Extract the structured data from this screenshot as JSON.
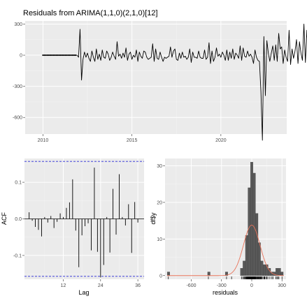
{
  "chart_data": [
    {
      "type": "line",
      "title": "Residuals from ARIMA(1,1,0)(2,1,0)[12]",
      "xlabel": "",
      "ylabel": "",
      "xlim": [
        2009.0,
        2023.7
      ],
      "ylim": [
        -760,
        330
      ],
      "x_ticks": [
        2010,
        2015,
        2020
      ],
      "y_ticks": [
        300,
        0,
        -300,
        -600
      ],
      "x_tick_labels": [
        "2010",
        "2015",
        "2020"
      ],
      "y_tick_labels": [
        "300",
        "0",
        "-300",
        "-600"
      ],
      "grid": true,
      "points_marked_until": 2011.9,
      "series": [
        {
          "x_start": 2010.0,
          "x_step": 0.0833333333,
          "values": [
            0,
            0,
            0,
            0,
            0,
            0,
            0,
            0,
            0,
            0,
            0,
            0,
            0,
            0,
            0,
            0,
            0,
            0,
            0,
            0,
            0,
            0,
            0,
            0,
            -20,
            250,
            -240,
            -40,
            30,
            -20,
            20,
            -30,
            -60,
            40,
            -20,
            -60,
            60,
            -40,
            10,
            -50,
            50,
            -20,
            -30,
            40,
            10,
            -50,
            -20,
            30,
            -10,
            -40,
            130,
            -10,
            10,
            -30,
            20,
            -20,
            70,
            -50,
            10,
            30,
            -40,
            0,
            -20,
            50,
            -60,
            30,
            -10,
            -30,
            40,
            30,
            -20,
            -40,
            -30,
            -20,
            110,
            -60,
            60,
            -30,
            -40,
            30,
            -20,
            -60,
            -20,
            -30,
            -20,
            -10,
            80,
            -20,
            40,
            60,
            -40,
            -50,
            20,
            -30,
            30,
            -20,
            -10,
            -40,
            -20,
            60,
            -70,
            30,
            -20,
            -20,
            -30,
            40,
            -20,
            -30,
            -30,
            50,
            -40,
            -20,
            120,
            -80,
            40,
            -60,
            -20,
            70,
            -10,
            10,
            -20,
            30,
            0,
            -50,
            50,
            -50,
            30,
            -30,
            60,
            -40,
            20,
            0,
            -30,
            90,
            -50,
            70,
            -10,
            -20,
            40,
            -10,
            10,
            -20,
            -80,
            50,
            -20,
            -50,
            -60,
            -350,
            -820,
            180,
            -390,
            140,
            20,
            -60,
            20,
            90,
            -50,
            100,
            -60,
            210,
            60,
            80,
            -80,
            50,
            -20,
            -60,
            240,
            -90,
            60,
            -30,
            40,
            150,
            -80,
            130,
            20,
            -50,
            300,
            -70,
            240,
            -30,
            -80,
            150,
            -80,
            -40,
            -50,
            -100,
            0
          ]
        }
      ]
    },
    {
      "type": "bar",
      "title": "",
      "xlabel": "Lag",
      "ylabel": "ACF",
      "x_ticks": [
        12,
        24,
        36
      ],
      "x_tick_labels": [
        "12",
        "24",
        "36"
      ],
      "y_ticks": [
        0.1,
        0.0,
        -0.1
      ],
      "y_tick_labels": [
        "0.1",
        "0.0",
        "-0.1"
      ],
      "xlim": [
        -0.5,
        38
      ],
      "ylim": [
        -0.165,
        0.165
      ],
      "confidence_bounds": [
        0.157,
        -0.157
      ],
      "grid": true,
      "lags": [
        1,
        2,
        3,
        4,
        5,
        6,
        7,
        8,
        9,
        10,
        11,
        12,
        13,
        14,
        15,
        16,
        17,
        18,
        19,
        20,
        21,
        22,
        23,
        24,
        25,
        26,
        27,
        28,
        29,
        30,
        31,
        32,
        33,
        34,
        35,
        36
      ],
      "values": [
        0.018,
        -0.005,
        -0.022,
        -0.03,
        -0.048,
        0.005,
        -0.01,
        0.008,
        -0.025,
        -0.008,
        0.015,
        0.005,
        0.03,
        0.045,
        0.108,
        -0.032,
        -0.132,
        -0.045,
        -0.02,
        -0.012,
        -0.086,
        0.14,
        -0.09,
        -0.16,
        -0.126,
        0.005,
        -0.092,
        0.082,
        -0.043,
        0.122,
        0.005,
        -0.018,
        0.04,
        -0.093,
        0.046,
        -0.01
      ]
    },
    {
      "type": "bar",
      "title": "",
      "xlabel": "residuals",
      "ylabel": "df$y",
      "x_ticks": [
        -600,
        -300,
        0,
        300
      ],
      "x_tick_labels": [
        "-600",
        "-300",
        "0",
        "300"
      ],
      "y_ticks": [
        0,
        10,
        20,
        30
      ],
      "y_tick_labels": [
        "0",
        "10",
        "20",
        "30"
      ],
      "xlim": [
        -860,
        340
      ],
      "ylim": [
        -1,
        32
      ],
      "bin_width": 25,
      "grid": true,
      "histogram": [
        {
          "x0": -837.5,
          "x1": -812.5,
          "count": 1
        },
        {
          "x0": -437.5,
          "x1": -412.5,
          "count": 1
        },
        {
          "x0": -262.5,
          "x1": -237.5,
          "count": 1
        },
        {
          "x0": -112.5,
          "x1": -87.5,
          "count": 2
        },
        {
          "x0": -87.5,
          "x1": -62.5,
          "count": 4
        },
        {
          "x0": -62.5,
          "x1": -37.5,
          "count": 11
        },
        {
          "x0": -37.5,
          "x1": -12.5,
          "count": 24
        },
        {
          "x0": -12.5,
          "x1": 12.5,
          "count": 31
        },
        {
          "x0": 12.5,
          "x1": 37.5,
          "count": 28
        },
        {
          "x0": 37.5,
          "x1": 62.5,
          "count": 17
        },
        {
          "x0": 62.5,
          "x1": 87.5,
          "count": 9
        },
        {
          "x0": 87.5,
          "x1": 112.5,
          "count": 4
        },
        {
          "x0": 112.5,
          "x1": 137.5,
          "count": 3
        },
        {
          "x0": 137.5,
          "x1": 162.5,
          "count": 3
        },
        {
          "x0": 162.5,
          "x1": 187.5,
          "count": 2
        },
        {
          "x0": 187.5,
          "x1": 212.5,
          "count": 1
        },
        {
          "x0": 212.5,
          "x1": 237.5,
          "count": 1
        },
        {
          "x0": 237.5,
          "x1": 262.5,
          "count": 2
        },
        {
          "x0": 262.5,
          "x1": 287.5,
          "count": 2
        },
        {
          "x0": 287.5,
          "x1": 312.5,
          "count": 1
        }
      ],
      "density_curve": {
        "mean": 0,
        "sd": 82,
        "peak": 13.8,
        "color": "#e8735a"
      },
      "rug": [
        -827,
        -430,
        -250,
        -200,
        -102,
        -90,
        -80,
        -73,
        -65,
        -60,
        -55,
        -50,
        -48,
        -45,
        -42,
        -40,
        -38,
        -35,
        -32,
        -30,
        -28,
        -25,
        -22,
        -20,
        -18,
        -15,
        -12,
        -10,
        -8,
        -5,
        -2,
        0,
        2,
        5,
        8,
        10,
        12,
        15,
        18,
        20,
        22,
        25,
        28,
        30,
        33,
        35,
        38,
        40,
        45,
        50,
        55,
        60,
        65,
        70,
        75,
        80,
        85,
        90,
        95,
        100,
        110,
        120,
        125,
        130,
        140,
        150,
        160,
        180,
        200,
        210,
        240,
        250,
        260,
        270,
        300
      ]
    }
  ]
}
